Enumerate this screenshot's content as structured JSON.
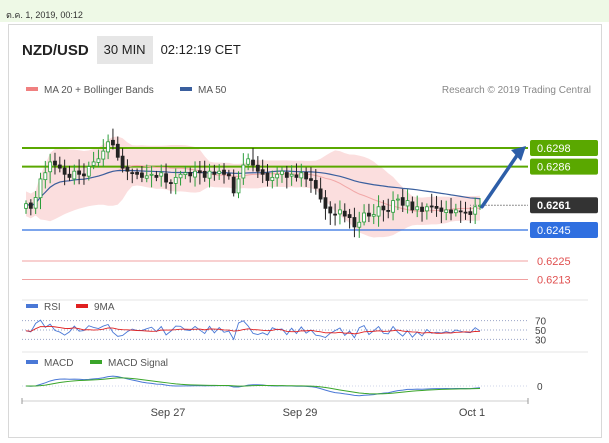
{
  "timestamp": "ต.ค. 1, 2019, 00:12",
  "header": {
    "pair": "NZD/USD",
    "timeframe": "30 MIN",
    "time": "02:12:19 CET"
  },
  "legend": {
    "bollinger": {
      "label": "MA 20 + Bollinger Bands",
      "color": "#f08080"
    },
    "ma50": {
      "label": "MA 50",
      "color": "#3a5f9e"
    },
    "credit": "Research © 2019 Trading Central"
  },
  "colors": {
    "support": "#2f6fe0",
    "resistance": "#5aa800",
    "target": "#e05050",
    "current": "#333333",
    "arrow": "#2d5ea8",
    "candle_up": "#2a9d3a",
    "candle_down": "#222222"
  },
  "chart_data": [
    {
      "type": "candlestick",
      "title": "",
      "x_labels": [
        "Sep 27",
        "Sep 29",
        "Oct 1"
      ],
      "ylim": [
        0.62,
        0.632
      ],
      "close_series": [
        0.6262,
        0.6259,
        0.6266,
        0.6278,
        0.6282,
        0.6289,
        0.6287,
        0.6285,
        0.6281,
        0.6279,
        0.6283,
        0.6281,
        0.628,
        0.6286,
        0.6289,
        0.6291,
        0.6296,
        0.6302,
        0.63,
        0.6292,
        0.6285,
        0.6283,
        0.6282,
        0.6281,
        0.6279,
        0.628,
        0.6281,
        0.6279,
        0.6282,
        0.6276,
        0.6275,
        0.6279,
        0.6281,
        0.6282,
        0.628,
        0.6283,
        0.6282,
        0.6279,
        0.6283,
        0.6281,
        0.6283,
        0.6281,
        0.628,
        0.6269,
        0.6278,
        0.6287,
        0.6291,
        0.6287,
        0.6283,
        0.6281,
        0.6277,
        0.6279,
        0.6281,
        0.6283,
        0.6279,
        0.6281,
        0.6279,
        0.6282,
        0.6278,
        0.6277,
        0.6272,
        0.6265,
        0.6259,
        0.6256,
        0.6255,
        0.6258,
        0.6254,
        0.6253,
        0.6247,
        0.625,
        0.6256,
        0.6254,
        0.6255,
        0.626,
        0.6258,
        0.6257,
        0.6264,
        0.6265,
        0.6261,
        0.6264,
        0.6258,
        0.626,
        0.6257,
        0.626,
        0.626,
        0.6259,
        0.6257,
        0.6258,
        0.6256,
        0.6258,
        0.6257,
        0.6256,
        0.6255,
        0.626,
        0.6261
      ],
      "levels": [
        {
          "value": 0.6298,
          "label": "0.6298",
          "kind": "resistance"
        },
        {
          "value": 0.6286,
          "label": "0.6286",
          "kind": "resistance"
        },
        {
          "value": 0.6261,
          "label": "0.6261",
          "kind": "current"
        },
        {
          "value": 0.6245,
          "label": "0.6245",
          "kind": "support"
        },
        {
          "value": 0.6225,
          "label": "0.6225",
          "kind": "target"
        },
        {
          "value": 0.6213,
          "label": "0.6213",
          "kind": "target"
        }
      ],
      "projection": {
        "from": 0.626,
        "to": 0.6298
      }
    },
    {
      "type": "line",
      "title": "",
      "series": [
        {
          "name": "RSI",
          "color": "#4a78d6"
        },
        {
          "name": "9MA",
          "color": "#e02020"
        }
      ],
      "y_ticks": [
        "70",
        "50",
        "30"
      ],
      "ylim": [
        20,
        80
      ]
    },
    {
      "type": "line",
      "title": "",
      "series": [
        {
          "name": "MACD",
          "color": "#4a78d6"
        },
        {
          "name": "MACD Signal",
          "color": "#3aa52a"
        }
      ],
      "y_ticks": [
        "0"
      ]
    }
  ]
}
